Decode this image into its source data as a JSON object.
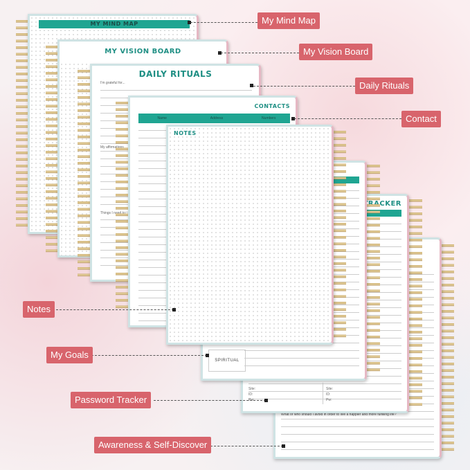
{
  "pages": {
    "mind_map": {
      "title": "MY MIND MAP"
    },
    "vision_board": {
      "title": "MY VISION BOARD"
    },
    "daily_rituals": {
      "title": "DAILY RITUALS",
      "prompt": "I'm grateful for...",
      "prompt2": "My affirmations",
      "prompt3": "Things I need to"
    },
    "contacts": {
      "title": "CONTACTS",
      "columns": [
        "Name",
        "Address",
        "Numbers"
      ]
    },
    "notes": {
      "title": "NOTES"
    },
    "goals": {
      "row_label": "SPIRITUAL"
    },
    "password_tracker": {
      "title": "TRACKER",
      "fields": [
        "Site:",
        "ID:",
        "Pw:"
      ]
    },
    "awareness": {
      "prompt": "What or who should I avoid in order to live a happier and more fulfilling life?"
    }
  },
  "labels": {
    "mind_map": "My Mind Map",
    "vision_board": "My Vision Board",
    "daily_rituals": "Daily Rituals",
    "contact": "Contact",
    "notes": "Notes",
    "goals": "My Goals",
    "password": "Password Tracker",
    "awareness": "Awareness & Self-Discover"
  },
  "colors": {
    "teal": "#1fa592",
    "label_red": "#d8646c"
  }
}
